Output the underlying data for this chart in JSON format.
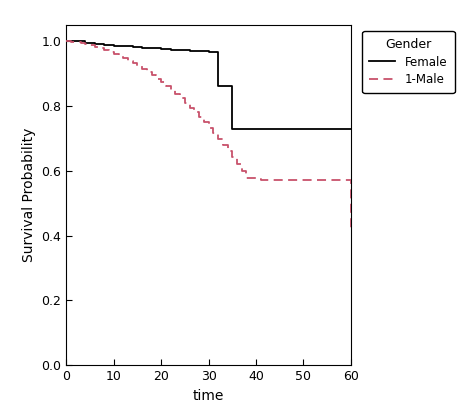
{
  "title": "",
  "xlabel": "time",
  "ylabel": "Survival Probability",
  "xlim": [
    0,
    60
  ],
  "ylim": [
    0.0,
    1.05
  ],
  "xticks": [
    0,
    10,
    20,
    30,
    40,
    50,
    60
  ],
  "yticks": [
    0.0,
    0.2,
    0.4,
    0.6,
    0.8,
    1.0
  ],
  "female_times": [
    0,
    2,
    4,
    6,
    8,
    10,
    12,
    14,
    16,
    18,
    20,
    22,
    24,
    26,
    28,
    30,
    32,
    35,
    60
  ],
  "female_surv": [
    1.0,
    1.0,
    0.995,
    0.992,
    0.989,
    0.986,
    0.984,
    0.982,
    0.98,
    0.978,
    0.976,
    0.974,
    0.972,
    0.97,
    0.968,
    0.966,
    0.86,
    0.73,
    0.73
  ],
  "male_times": [
    0,
    1,
    2,
    3,
    4,
    5,
    6,
    7,
    8,
    9,
    10,
    11,
    12,
    13,
    14,
    15,
    16,
    17,
    18,
    19,
    20,
    21,
    22,
    23,
    24,
    25,
    26,
    27,
    28,
    29,
    30,
    31,
    32,
    33,
    34,
    35,
    36,
    37,
    38,
    39,
    40,
    41,
    50,
    57,
    60
  ],
  "male_surv": [
    1.0,
    0.998,
    0.996,
    0.993,
    0.99,
    0.987,
    0.983,
    0.978,
    0.973,
    0.967,
    0.961,
    0.954,
    0.947,
    0.939,
    0.931,
    0.922,
    0.913,
    0.904,
    0.894,
    0.884,
    0.873,
    0.861,
    0.849,
    0.836,
    0.823,
    0.809,
    0.795,
    0.78,
    0.765,
    0.749,
    0.733,
    0.716,
    0.698,
    0.68,
    0.661,
    0.641,
    0.621,
    0.6,
    0.578,
    0.577,
    0.576,
    0.57,
    0.57,
    0.57,
    0.42
  ],
  "female_color": "#000000",
  "male_color": "#C8526B",
  "female_lw": 1.3,
  "male_lw": 1.3,
  "legend_title": "Gender",
  "legend_female": "Female",
  "legend_male": "1-Male",
  "background_color": "#ffffff",
  "figsize": [
    4.74,
    4.15
  ],
  "dpi": 100
}
